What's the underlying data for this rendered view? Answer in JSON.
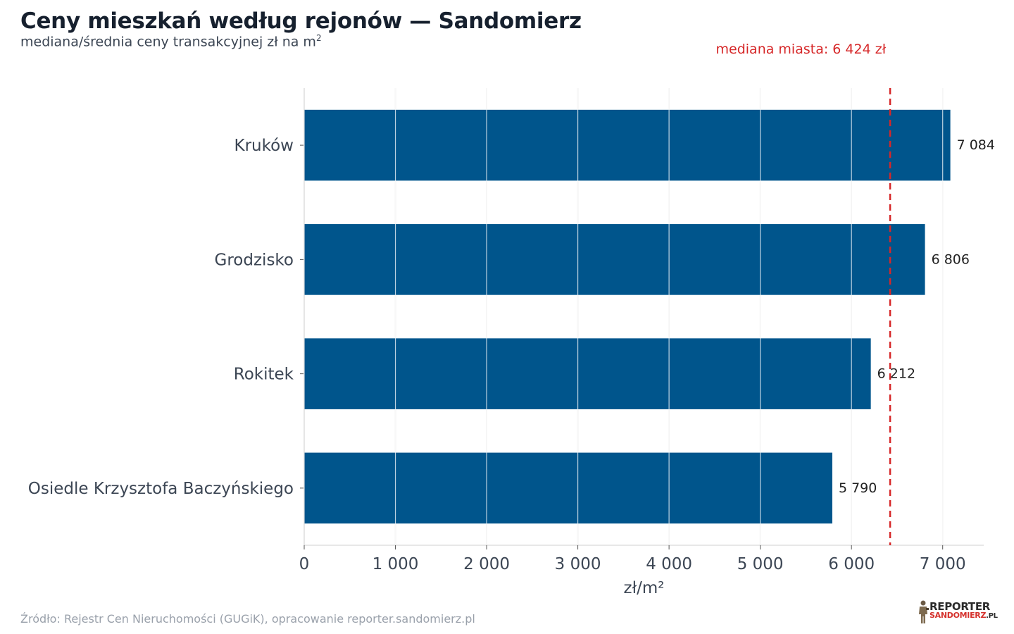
{
  "header": {
    "title": "Ceny mieszkań według rejonów — Sandomierz",
    "subtitle_text": "mediana/średnia ceny transakcyjnej zł na m",
    "subtitle_sup": "2"
  },
  "chart_data": {
    "type": "bar",
    "orientation": "horizontal",
    "categories": [
      "Kruków",
      "Grodzisko",
      "Rokitek",
      "Osiedle Krzysztofa Baczyńskiego"
    ],
    "values": [
      7084,
      6806,
      6212,
      5790
    ],
    "value_labels": [
      "7 084",
      "6 806",
      "6 212",
      "5 790"
    ],
    "xlabel": "zł/m²",
    "xlim": [
      0,
      7450
    ],
    "xticks": [
      0,
      1000,
      2000,
      3000,
      4000,
      5000,
      6000,
      7000
    ],
    "xtick_labels": [
      "0",
      "1 000",
      "2 000",
      "3 000",
      "4 000",
      "5 000",
      "6 000",
      "7 000"
    ],
    "grid": "vertical",
    "reference_line": {
      "value": 6424,
      "label": "mediana miasta: 6 424 zł",
      "color": "#d62728",
      "style": "dashed"
    },
    "colors": {
      "bar": "#00558c",
      "grid": "#e3e3e3",
      "axis_text": "#3c4654",
      "value_label": "#222222"
    }
  },
  "footer": {
    "source": "Źródło: Rejestr Cen Nieruchomości (GUGiK), opracowanie reporter.sandomierz.pl"
  },
  "logo": {
    "line1": "REPORTER",
    "line2": "SANDOMIERZ",
    "suffix": ".PL"
  }
}
